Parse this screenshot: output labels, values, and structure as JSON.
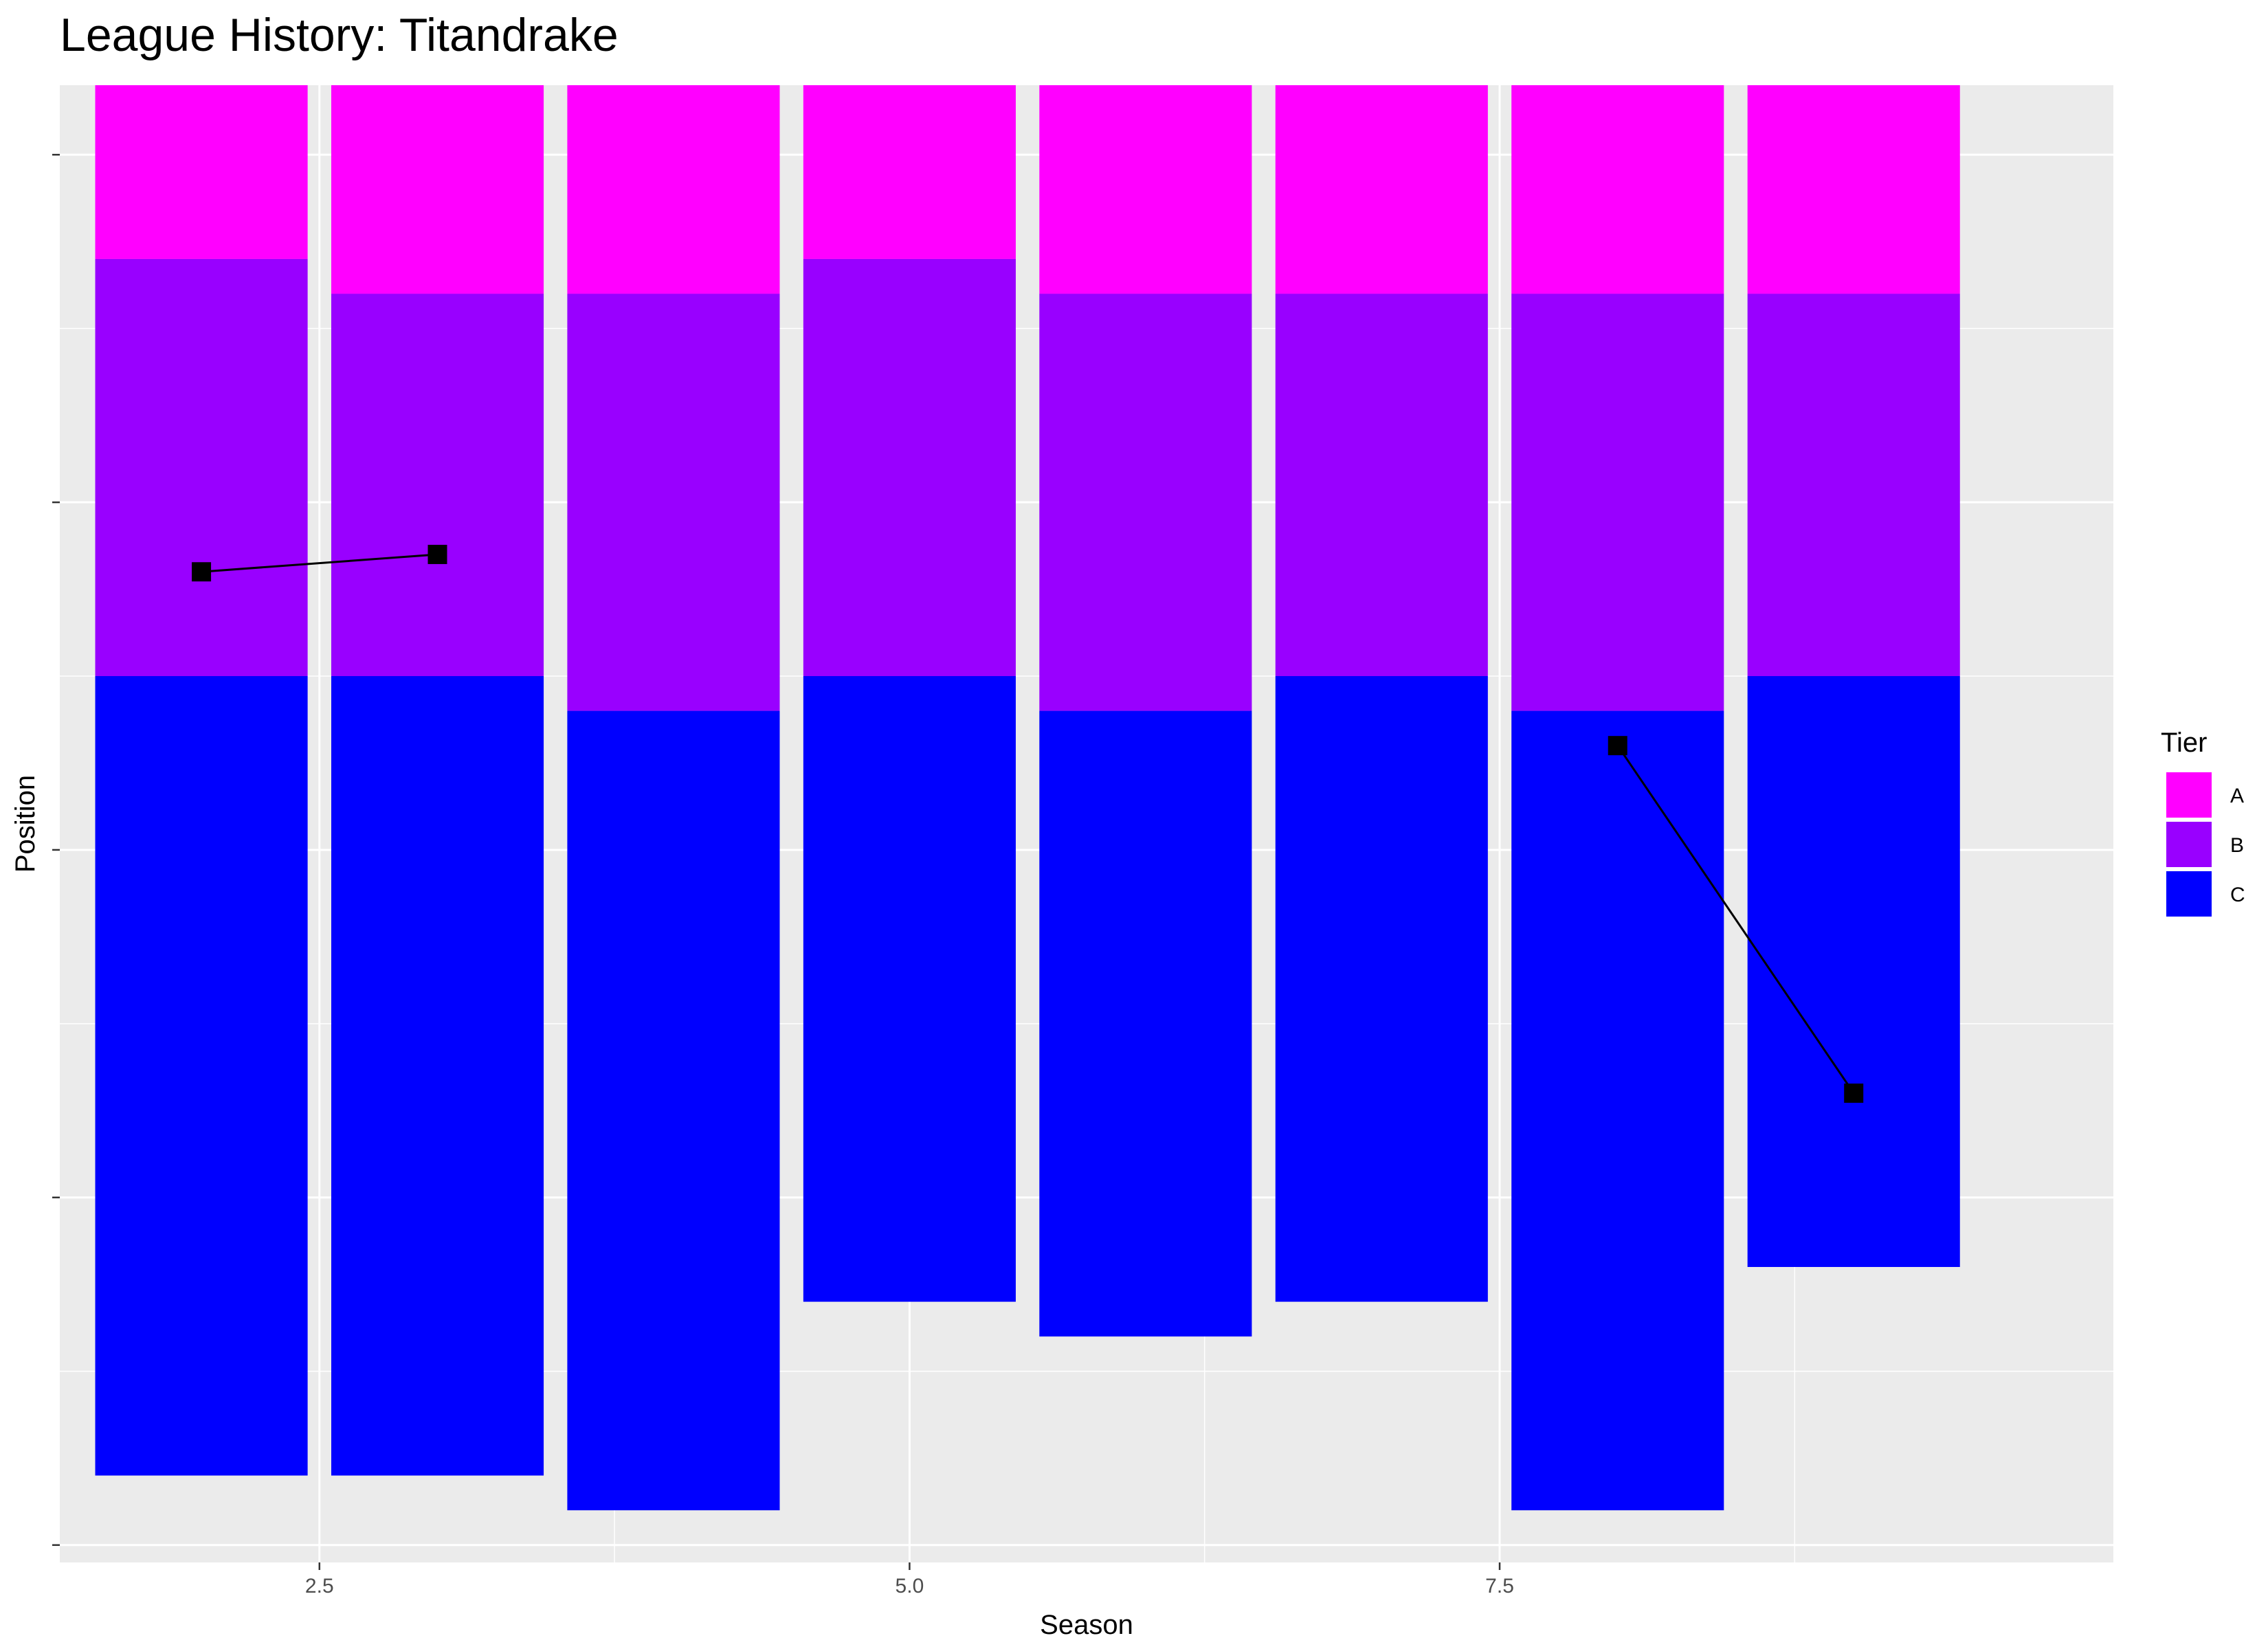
{
  "chart_data": {
    "type": "bar",
    "stacked": true,
    "title": "League History: Titandrake",
    "xlabel": "Season",
    "ylabel": "Position",
    "xlim": [
      1.4,
      10.1
    ],
    "ylim": [
      0,
      85
    ],
    "y_reversed": true,
    "x_ticks": [
      2.5,
      5.0,
      7.5
    ],
    "x_tick_labels": [
      "2.5",
      "5.0",
      "7.5"
    ],
    "y_ticks": [
      4,
      24,
      44,
      64,
      84
    ],
    "y_tick_labels": [
      "",
      "",
      "",
      "",
      ""
    ],
    "grid": true,
    "legend": {
      "title": "Tier",
      "position": "right",
      "items": [
        {
          "label": "A",
          "color": "#FF00FF"
        },
        {
          "label": "B",
          "color": "#9900FF"
        },
        {
          "label": "C",
          "color": "#0000FF"
        }
      ]
    },
    "categories": [
      2,
      3,
      4,
      5,
      6,
      7,
      8,
      9
    ],
    "series": [
      {
        "name": "A",
        "color": "#FF00FF",
        "values": [
          10,
          12,
          12,
          10,
          12,
          12,
          12,
          12
        ]
      },
      {
        "name": "B",
        "color": "#9900FF",
        "values": [
          24,
          22,
          24,
          24,
          24,
          22,
          24,
          22
        ]
      },
      {
        "name": "C",
        "color": "#0000FF",
        "values": [
          46,
          46,
          46,
          36,
          36,
          36,
          46,
          34
        ]
      }
    ],
    "position_line": [
      {
        "x": 2,
        "y": 28
      },
      {
        "x": 3,
        "y": 27
      },
      {
        "x": 8,
        "y": 38
      },
      {
        "x": 9,
        "y": 58
      }
    ],
    "position_segments": [
      [
        0,
        1
      ],
      [
        2,
        3
      ]
    ]
  }
}
